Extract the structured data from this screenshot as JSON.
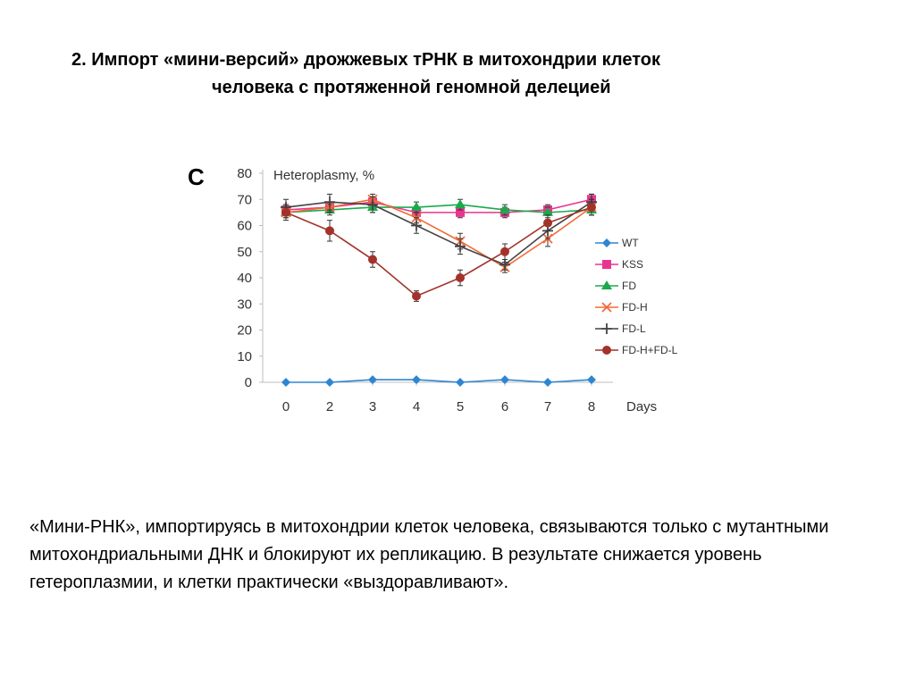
{
  "slide": {
    "title_line1": "2. Импорт «мини-версий» дрожжевых тРНК в митохондрии клеток",
    "title_line2": "человека с протяженной геномной делецией",
    "body": "«Мини-РНК», импортируясь в митохондрии клеток человека, связываются только с мутантными митохондриальными ДНК и блокируют их репликацию. В результате снижается уровень гетероплазмии, и клетки практически «выздоравливают»."
  },
  "chart_data": {
    "type": "line",
    "panel_label": "C",
    "ylabel": "Heteroplasmy, %",
    "xlabel": "Days",
    "categories": [
      "0",
      "2",
      "3",
      "4",
      "5",
      "6",
      "7",
      "8"
    ],
    "ylim": [
      0,
      80
    ],
    "yticks": [
      0,
      10,
      20,
      30,
      40,
      50,
      60,
      70,
      80
    ],
    "grid": false,
    "legend_position": "right",
    "series": [
      {
        "name": "WT",
        "marker": "diamond",
        "color": "#2e86d1",
        "values": [
          0,
          0,
          1,
          1,
          0,
          1,
          0,
          1
        ],
        "errors": [
          0,
          0,
          0,
          0,
          0,
          0,
          0,
          0
        ]
      },
      {
        "name": "KSS",
        "marker": "square",
        "color": "#e8368f",
        "values": [
          66,
          67,
          69,
          65,
          65,
          65,
          66,
          70
        ],
        "errors": [
          2,
          2,
          2,
          2,
          2,
          2,
          2,
          2
        ]
      },
      {
        "name": "FD",
        "marker": "triangle",
        "color": "#1aaa4b",
        "values": [
          65,
          66,
          67,
          67,
          68,
          66,
          65,
          66
        ],
        "errors": [
          2,
          2,
          2,
          2,
          2,
          2,
          2,
          2
        ]
      },
      {
        "name": "FD-H",
        "marker": "x",
        "color": "#f26b3a",
        "values": [
          65,
          67,
          70,
          63,
          54,
          44,
          55,
          67
        ],
        "errors": [
          2,
          2,
          2,
          2,
          3,
          2,
          3,
          3
        ]
      },
      {
        "name": "FD-L",
        "marker": "plus",
        "color": "#444444",
        "values": [
          67,
          69,
          68,
          60,
          52,
          45,
          58,
          69
        ],
        "errors": [
          3,
          3,
          3,
          3,
          3,
          2,
          3,
          3
        ]
      },
      {
        "name": "FD-H+FD-L",
        "marker": "circle",
        "color": "#a3322a",
        "values": [
          65,
          58,
          47,
          33,
          40,
          50,
          61,
          67
        ],
        "errors": [
          3,
          4,
          3,
          2,
          3,
          3,
          3,
          3
        ]
      }
    ]
  }
}
